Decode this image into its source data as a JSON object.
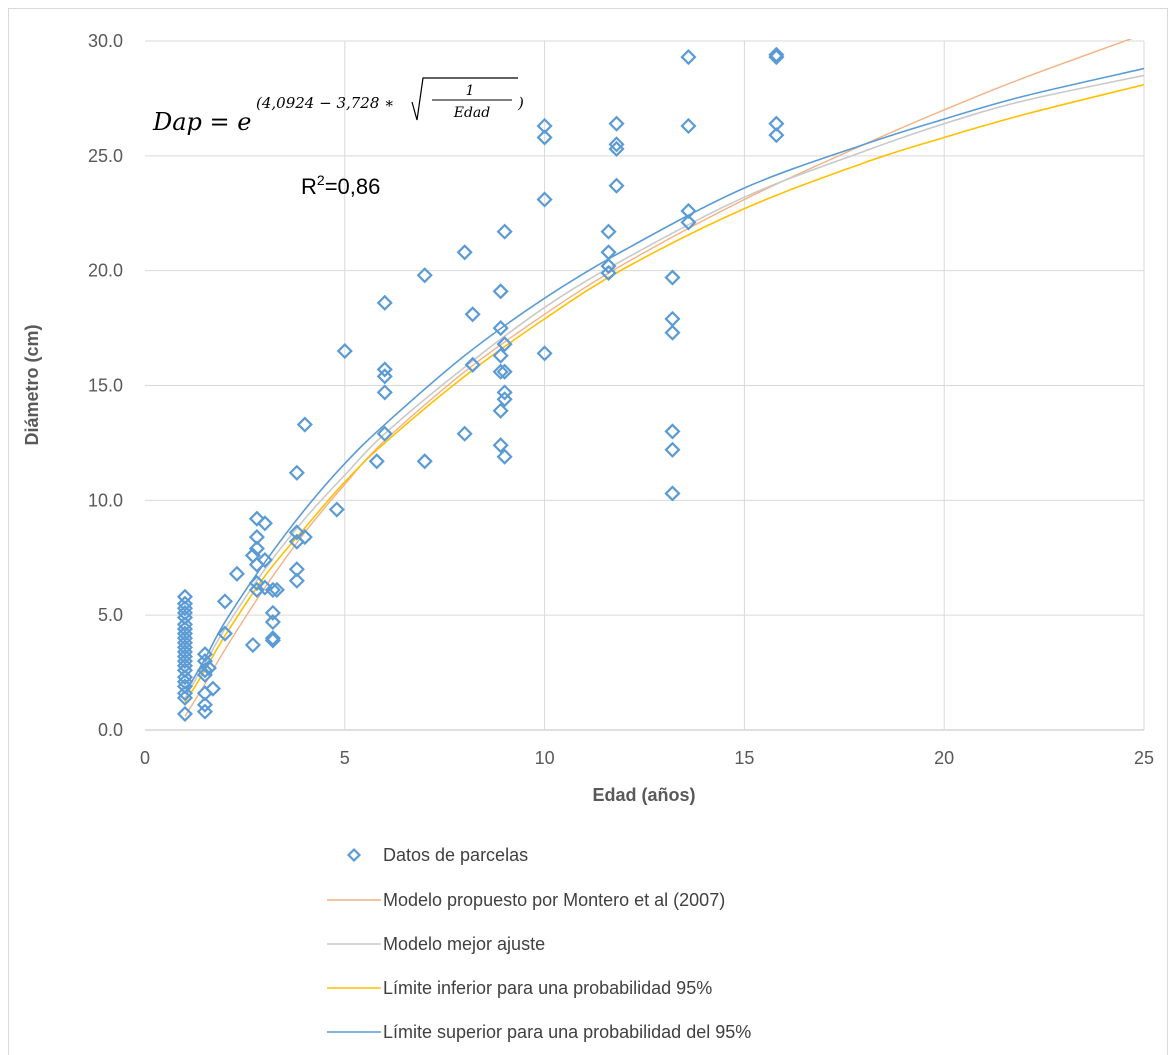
{
  "chart_data": {
    "type": "scatter",
    "xlabel": "Edad (años)",
    "ylabel": "Diámetro (cm)",
    "xlim": [
      0,
      25
    ],
    "ylim": [
      0,
      30
    ],
    "x_ticks": [
      "0",
      "5",
      "10",
      "15",
      "20",
      "25"
    ],
    "y_ticks": [
      "0.0",
      "5.0",
      "10.0",
      "15.0",
      "20.0",
      "25.0",
      "30.0"
    ],
    "grid": true,
    "legend_position": "bottom",
    "annotations": {
      "equation_lhs": "Dap = e",
      "equation_exponent_open": "(4,0924 − 3,728 ∗ ",
      "equation_frac_num": "1",
      "equation_frac_den": "Edad",
      "equation_exponent_close": ")",
      "r2_prefix": "R",
      "r2_sup": "2",
      "r2_value": "=0,86"
    },
    "series": [
      {
        "name": "Datos de parcelas",
        "kind": "scatter",
        "color": "#5b9bd5",
        "marker": "diamond-open",
        "points": [
          [
            1,
            0.7
          ],
          [
            1,
            1.4
          ],
          [
            1,
            1.6
          ],
          [
            1,
            1.9
          ],
          [
            1,
            2.1
          ],
          [
            1,
            2.3
          ],
          [
            1,
            2.6
          ],
          [
            1,
            2.8
          ],
          [
            1,
            3.0
          ],
          [
            1,
            3.2
          ],
          [
            1,
            3.4
          ],
          [
            1,
            3.6
          ],
          [
            1,
            3.8
          ],
          [
            1,
            4.0
          ],
          [
            1,
            4.2
          ],
          [
            1,
            4.4
          ],
          [
            1,
            4.6
          ],
          [
            1,
            4.9
          ],
          [
            1,
            5.1
          ],
          [
            1,
            5.3
          ],
          [
            1,
            5.5
          ],
          [
            1,
            5.8
          ],
          [
            1.5,
            0.8
          ],
          [
            1.5,
            1.1
          ],
          [
            1.5,
            1.6
          ],
          [
            1.5,
            2.4
          ],
          [
            1.5,
            2.6
          ],
          [
            1.5,
            3.0
          ],
          [
            1.5,
            3.3
          ],
          [
            1.6,
            2.7
          ],
          [
            1.7,
            1.8
          ],
          [
            2,
            4.2
          ],
          [
            2,
            5.6
          ],
          [
            2.3,
            6.8
          ],
          [
            2.7,
            3.7
          ],
          [
            2.7,
            7.6
          ],
          [
            2.8,
            6.1
          ],
          [
            2.8,
            6.4
          ],
          [
            2.8,
            7.2
          ],
          [
            2.8,
            7.9
          ],
          [
            2.8,
            8.4
          ],
          [
            2.8,
            9.2
          ],
          [
            3,
            6.2
          ],
          [
            3,
            7.4
          ],
          [
            3,
            9.0
          ],
          [
            3.2,
            3.9
          ],
          [
            3.2,
            4.0
          ],
          [
            3.2,
            4.7
          ],
          [
            3.2,
            5.1
          ],
          [
            3.2,
            6.1
          ],
          [
            3.3,
            6.1
          ],
          [
            3.8,
            6.5
          ],
          [
            3.8,
            7.0
          ],
          [
            3.8,
            8.2
          ],
          [
            3.8,
            8.6
          ],
          [
            3.8,
            11.2
          ],
          [
            4,
            8.4
          ],
          [
            4,
            13.3
          ],
          [
            4.8,
            9.6
          ],
          [
            5,
            16.5
          ],
          [
            5.8,
            11.7
          ],
          [
            6,
            12.9
          ],
          [
            6,
            14.7
          ],
          [
            6,
            15.4
          ],
          [
            6,
            15.7
          ],
          [
            6,
            18.6
          ],
          [
            7,
            11.7
          ],
          [
            7,
            19.8
          ],
          [
            8,
            12.9
          ],
          [
            8,
            20.8
          ],
          [
            8.2,
            15.9
          ],
          [
            8.2,
            18.1
          ],
          [
            8.9,
            12.4
          ],
          [
            8.9,
            13.9
          ],
          [
            8.9,
            15.6
          ],
          [
            8.9,
            16.3
          ],
          [
            8.9,
            17.5
          ],
          [
            8.9,
            19.1
          ],
          [
            9,
            11.9
          ],
          [
            9,
            14.4
          ],
          [
            9,
            14.7
          ],
          [
            9,
            15.6
          ],
          [
            9,
            16.8
          ],
          [
            9,
            21.7
          ],
          [
            10,
            16.4
          ],
          [
            10,
            23.1
          ],
          [
            10,
            25.8
          ],
          [
            10,
            26.3
          ],
          [
            11.6,
            19.9
          ],
          [
            11.6,
            20.2
          ],
          [
            11.6,
            20.8
          ],
          [
            11.6,
            21.7
          ],
          [
            11.8,
            23.7
          ],
          [
            11.8,
            25.3
          ],
          [
            11.8,
            25.5
          ],
          [
            11.8,
            26.4
          ],
          [
            13.2,
            10.3
          ],
          [
            13.2,
            12.2
          ],
          [
            13.2,
            13.0
          ],
          [
            13.2,
            17.3
          ],
          [
            13.2,
            17.9
          ],
          [
            13.2,
            19.7
          ],
          [
            13.6,
            22.1
          ],
          [
            13.6,
            22.6
          ],
          [
            13.6,
            26.3
          ],
          [
            13.6,
            29.3
          ],
          [
            15.8,
            25.9
          ],
          [
            15.8,
            26.4
          ],
          [
            15.8,
            29.3
          ],
          [
            15.8,
            29.4
          ]
        ]
      },
      {
        "name": "Modelo propuesto por Montero et al (2007)",
        "kind": "line",
        "color": "#f4b183",
        "x": [
          1,
          1.5,
          2,
          3,
          4,
          5,
          6,
          8,
          10,
          12,
          15,
          18,
          20,
          22,
          25
        ],
        "y": [
          0.6,
          2.0,
          3.5,
          6.2,
          8.6,
          10.7,
          12.6,
          15.6,
          18.1,
          20.3,
          23.1,
          25.5,
          27.0,
          28.4,
          30.3
        ]
      },
      {
        "name": "Modelo mejor ajuste",
        "kind": "line",
        "color": "#c9c9c9",
        "x": [
          1,
          1.5,
          2,
          3,
          4,
          5,
          6,
          8,
          10,
          12,
          15,
          18,
          20,
          22,
          25
        ],
        "y": [
          1.4,
          2.9,
          4.4,
          7.0,
          9.2,
          11.1,
          12.9,
          15.8,
          18.4,
          20.5,
          23.2,
          25.2,
          26.4,
          27.4,
          28.5
        ]
      },
      {
        "name": "Límite inferior para una probabilidad 95%",
        "kind": "line",
        "color": "#ffc000",
        "x": [
          1,
          1.5,
          2,
          3,
          4,
          5,
          6,
          8,
          10,
          12,
          15,
          18,
          20,
          22,
          25
        ],
        "y": [
          1.2,
          2.6,
          4.1,
          6.7,
          8.8,
          10.8,
          12.5,
          15.4,
          17.9,
          20.1,
          22.7,
          24.7,
          25.8,
          26.8,
          28.1
        ]
      },
      {
        "name": "Límite superior para una probabilidad del 95%",
        "kind": "line",
        "color": "#5b9bd5",
        "x": [
          1,
          1.5,
          2,
          3,
          4,
          5,
          6,
          8,
          10,
          12,
          15,
          18,
          20,
          22,
          25
        ],
        "y": [
          1.6,
          3.1,
          4.7,
          7.3,
          9.6,
          11.6,
          13.3,
          16.3,
          18.8,
          20.9,
          23.6,
          25.5,
          26.6,
          27.6,
          28.8
        ]
      }
    ]
  }
}
